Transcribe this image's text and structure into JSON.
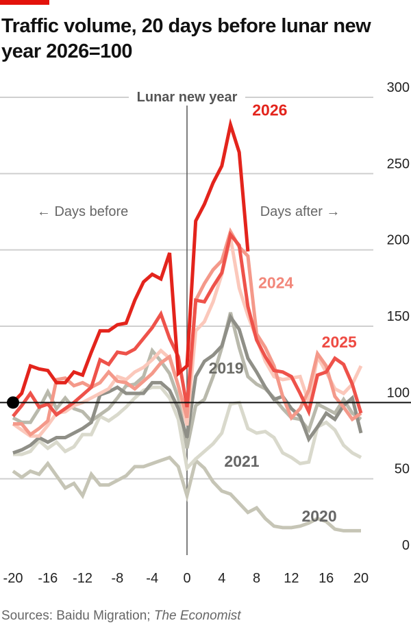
{
  "title": "Traffic volume, 20 days before lunar new year 2026=100",
  "source_prefix": "Sources: Baidu Migration; ",
  "source_italic": "The Economist",
  "chart_data": {
    "type": "line",
    "title": "Traffic volume, 20 days before lunar new year 2026=100",
    "xlabel": "",
    "ylabel": "",
    "xlim": [
      -20,
      20
    ],
    "ylim": [
      0,
      300
    ],
    "x_ticks": [
      -20,
      -16,
      -12,
      -8,
      -4,
      0,
      4,
      8,
      12,
      16,
      20
    ],
    "y_ticks": [
      0,
      50,
      100,
      150,
      200,
      250,
      300
    ],
    "y_axis_position": "right",
    "grid": true,
    "reference_line": {
      "y": 100
    },
    "vertical_marker": {
      "x": 0,
      "label": "Lunar new year"
    },
    "annotations": {
      "before": "← Days before",
      "after": "Days after →"
    },
    "reference_point": {
      "x": -20,
      "y": 100
    },
    "x": [
      -20,
      -19,
      -18,
      -17,
      -16,
      -15,
      -14,
      -13,
      -12,
      -11,
      -10,
      -9,
      -8,
      -7,
      -6,
      -5,
      -4,
      -3,
      -2,
      -1,
      0,
      1,
      2,
      3,
      4,
      5,
      6,
      7,
      8,
      9,
      10,
      11,
      12,
      13,
      14,
      15,
      16,
      17,
      18,
      19,
      20
    ],
    "series": [
      {
        "name": "2020",
        "color": "#c6c5b6",
        "label_color": "#666666",
        "values": [
          55,
          51,
          55,
          53,
          60,
          52,
          44,
          47,
          39,
          53,
          46,
          46,
          49,
          52,
          58,
          58,
          60,
          62,
          64,
          58,
          39,
          62,
          57,
          48,
          42,
          40,
          34,
          28,
          31,
          24,
          19,
          18,
          18,
          19,
          21,
          24,
          22,
          17,
          16,
          16,
          16
        ]
      },
      {
        "name": "2021",
        "color": "#d9d9cc",
        "label_color": "#666666",
        "values": [
          66,
          66,
          68,
          75,
          70,
          74,
          68,
          71,
          79,
          79,
          91,
          88,
          92,
          97,
          103,
          108,
          110,
          110,
          103,
          89,
          57,
          63,
          68,
          73,
          80,
          99,
          100,
          83,
          80,
          81,
          77,
          67,
          64,
          60,
          61,
          84,
          87,
          82,
          72,
          67,
          64
        ]
      },
      {
        "color": "#b9b9ac",
        "values": [
          90,
          87,
          87,
          96,
          107,
          96,
          103,
          96,
          94,
          88,
          92,
          96,
          103,
          111,
          112,
          117,
          134,
          127,
          119,
          103,
          70,
          98,
          102,
          117,
          136,
          159,
          136,
          117,
          112,
          109,
          103,
          96,
          90,
          89,
          82,
          99,
          96,
          93,
          102,
          93,
          89
        ]
      },
      {
        "name": "2019",
        "color": "#8f8f87",
        "label_color": "#6b6b66",
        "values": [
          67,
          69,
          72,
          77,
          74,
          77,
          77,
          80,
          83,
          87,
          105,
          107,
          110,
          106,
          106,
          106,
          113,
          113,
          108,
          96,
          77,
          117,
          127,
          131,
          137,
          156,
          148,
          129,
          120,
          110,
          102,
          104,
          96,
          91,
          76,
          84,
          93,
          89,
          98,
          103,
          80
        ]
      },
      {
        "color": "#fbc8bb",
        "values": [
          86,
          82,
          78,
          78,
          85,
          93,
          94,
          98,
          100,
          103,
          106,
          109,
          117,
          115,
          120,
          123,
          128,
          134,
          129,
          111,
          85,
          147,
          153,
          166,
          184,
          208,
          175,
          157,
          142,
          127,
          117,
          115,
          116,
          117,
          100,
          130,
          120,
          109,
          106,
          112,
          124
        ]
      },
      {
        "name": "2024",
        "color": "#f4998a",
        "label_color": "#f2877a",
        "values": [
          86,
          86,
          79,
          83,
          88,
          115,
          116,
          111,
          113,
          110,
          113,
          120,
          114,
          113,
          109,
          114,
          119,
          126,
          130,
          111,
          90,
          167,
          178,
          187,
          193,
          212,
          202,
          196,
          145,
          136,
          124,
          104,
          90,
          96,
          108,
          132,
          124,
          104,
          97,
          89,
          93
        ]
      },
      {
        "name": "2025",
        "color": "#ee524a",
        "label_color": "#ee4a42",
        "values": [
          91,
          98,
          106,
          97,
          99,
          92,
          96,
          100,
          105,
          110,
          128,
          125,
          133,
          132,
          135,
          142,
          149,
          158,
          142,
          130,
          97,
          167,
          166,
          176,
          185,
          210,
          203,
          163,
          141,
          130,
          121,
          120,
          117,
          106,
          94,
          118,
          120,
          129,
          125,
          112,
          93
        ]
      },
      {
        "name": "2026",
        "color": "#e3241c",
        "label_color": "#e3241c",
        "values": [
          100,
          106,
          124,
          122,
          121,
          113,
          113,
          120,
          118,
          133,
          147,
          147,
          151,
          152,
          167,
          179,
          184,
          181,
          198,
          119,
          124,
          219,
          230,
          244,
          255,
          282,
          264,
          199,
          null,
          null,
          null,
          null,
          null,
          null,
          null,
          null,
          null,
          null,
          null,
          null,
          null
        ]
      }
    ]
  }
}
